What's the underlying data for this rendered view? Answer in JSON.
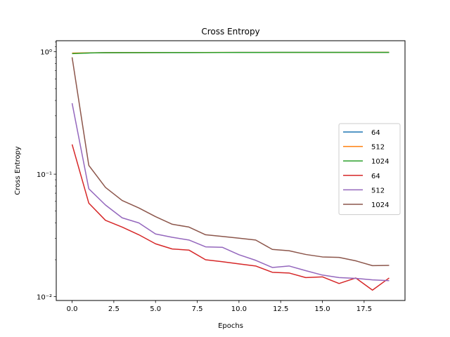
{
  "chart_data": {
    "type": "line",
    "title": "Cross Entropy",
    "xlabel": "Epochs",
    "ylabel": "Cross Entropy",
    "yscale": "log",
    "xlim": [
      -0.95,
      19.95
    ],
    "ylim": [
      0.0093,
      1.23
    ],
    "grid": false,
    "legend_position": "center-right",
    "x_ticks": [
      0,
      2.5,
      5,
      7.5,
      10,
      12.5,
      15,
      17.5
    ],
    "x_tick_labels": [
      "0.0",
      "2.5",
      "5.0",
      "7.5",
      "10.0",
      "12.5",
      "15.0",
      "17.5"
    ],
    "y_major_ticks": [
      0.01,
      0.1,
      1
    ],
    "y_tick_labels": [
      "10⁻²",
      "10⁻¹",
      "10⁰"
    ],
    "x": [
      0,
      1,
      2,
      3,
      4,
      5,
      6,
      7,
      8,
      9,
      10,
      11,
      12,
      13,
      14,
      15,
      16,
      17,
      18,
      19
    ],
    "series": [
      {
        "name": "64",
        "color": "#1f77b4",
        "values": [
          0.97,
          0.978,
          0.982,
          0.983,
          0.984,
          0.985,
          0.985,
          0.985,
          0.986,
          0.986,
          0.987,
          0.987,
          0.987,
          0.987,
          0.987,
          0.988,
          0.988,
          0.988,
          0.988,
          0.988
        ]
      },
      {
        "name": "512",
        "color": "#ff7f0e",
        "values": [
          0.975,
          0.98,
          0.983,
          0.984,
          0.985,
          0.985,
          0.986,
          0.986,
          0.986,
          0.987,
          0.987,
          0.987,
          0.988,
          0.988,
          0.988,
          0.988,
          0.988,
          0.988,
          0.989,
          0.989
        ]
      },
      {
        "name": "1024",
        "color": "#2ca02c",
        "values": [
          0.965,
          0.977,
          0.981,
          0.982,
          0.983,
          0.984,
          0.984,
          0.985,
          0.985,
          0.986,
          0.986,
          0.986,
          0.987,
          0.987,
          0.987,
          0.987,
          0.987,
          0.988,
          0.988,
          0.988
        ]
      },
      {
        "name": "64",
        "color": "#d62728",
        "values": [
          0.175,
          0.058,
          0.042,
          0.037,
          0.032,
          0.027,
          0.0245,
          0.024,
          0.02,
          0.0193,
          0.0185,
          0.0178,
          0.0158,
          0.0156,
          0.0143,
          0.0145,
          0.0128,
          0.0142,
          0.0113,
          0.0142
        ]
      },
      {
        "name": "512",
        "color": "#9467bd",
        "values": [
          0.38,
          0.076,
          0.056,
          0.044,
          0.04,
          0.0325,
          0.0305,
          0.029,
          0.0255,
          0.0253,
          0.022,
          0.0198,
          0.0173,
          0.0178,
          0.0163,
          0.015,
          0.0143,
          0.0141,
          0.0137,
          0.0135
        ]
      },
      {
        "name": "1024",
        "color": "#8c564b",
        "values": [
          0.9,
          0.118,
          0.078,
          0.061,
          0.053,
          0.045,
          0.039,
          0.037,
          0.032,
          0.031,
          0.03,
          0.029,
          0.0243,
          0.0237,
          0.0221,
          0.0211,
          0.0209,
          0.0196,
          0.0179,
          0.018
        ]
      }
    ]
  }
}
